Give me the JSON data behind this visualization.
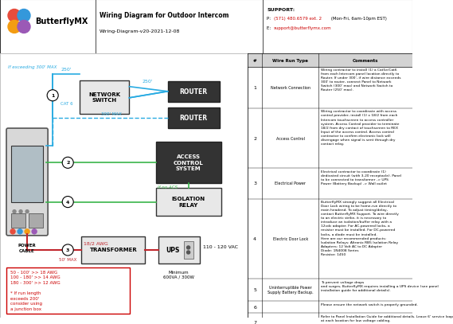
{
  "title": "Wiring Diagram for Outdoor Intercom",
  "subtitle": "Wiring-Diagram-v20-2021-12-08",
  "support_title": "SUPPORT:",
  "support_phone_prefix": "P: ",
  "support_phone_red": "(571) 480.6579 ext. 2",
  "support_phone_suffix": " (Mon-Fri, 6am-10pm EST)",
  "support_email_prefix": "E: ",
  "support_email_red": "support@butterflymx.com",
  "logo_text": "ButterflyMX",
  "bg_color": "#ffffff",
  "wire_blue": "#29abe2",
  "wire_green": "#39b54a",
  "wire_red": "#c1272d",
  "text_cyan": "#29abe2",
  "text_red": "#c1272d",
  "text_green": "#39b54a",
  "table_header_bg": "#d3d3d3",
  "logo_colors": [
    "#e74c3c",
    "#3498db",
    "#f39c12",
    "#9b59b6"
  ],
  "table_rows": [
    {
      "num": "1",
      "type": "Network Connection",
      "comments": "Wiring contractor to install (1) a Cat5e/Cat6\nfrom each Intercom panel location directly to\nRouter. If under 300', if wire distance exceeds\n300' to router, connect Panel to Network\nSwitch (300' max) and Network Switch to\nRouter (250' max)."
    },
    {
      "num": "2",
      "type": "Access Control",
      "comments": "Wiring contractor to coordinate with access\ncontrol provider, install (1) x 18/2 from each\nIntercom touchscreen to access controller\nsystem. Access Control provider to terminate\n18/2 from dry contact of touchscreen to REX\nInput of the access control. Access control\ncontractor to confirm electronic lock will\ndisengage when signal is sent through dry\ncontact relay."
    },
    {
      "num": "3",
      "type": "Electrical Power",
      "comments": "Electrical contractor to coordinate (1)\ndedicated circuit (with 3-20 receptacle). Panel\nto be connected to transformer -> UPS\nPower (Battery Backup) -> Wall outlet"
    },
    {
      "num": "4",
      "type": "Electric Door Lock",
      "comments": "ButterflyMX strongly suggest all Electrical\nDoor Lock wiring to be home-run directly to\nmain headend. To adjust timing/delay,\ncontact ButterflyMX Support. To wire directly\nto an electric strike, it is necessary to\nintroduce an isolation/buffer relay with a\n12vdc adapter. For AC-powered locks, a\nresistor must be installed. For DC-powered\nlocks, a diode must be installed.\nHere are our recommended products:\nIsolation Relays: Altronix RB5 Isolation Relay\nAdapters: 12 Volt AC to DC Adapter\nDiode: 1N4008 Series\nResistor: 1450"
    },
    {
      "num": "5",
      "type": "Uninterruptible Power\nSupply Battery Backup.",
      "comments": "To prevent voltage drops\nand surges, ButterflyMX requires installing a UPS device (see panel\ninstallation guide for additional details)."
    },
    {
      "num": "6",
      "type": "",
      "comments": "Please ensure the network switch is properly grounded."
    },
    {
      "num": "7",
      "type": "",
      "comments": "Refer to Panel Installation Guide for additional details. Leave 6' service loop\nat each location for low voltage cabling."
    }
  ]
}
